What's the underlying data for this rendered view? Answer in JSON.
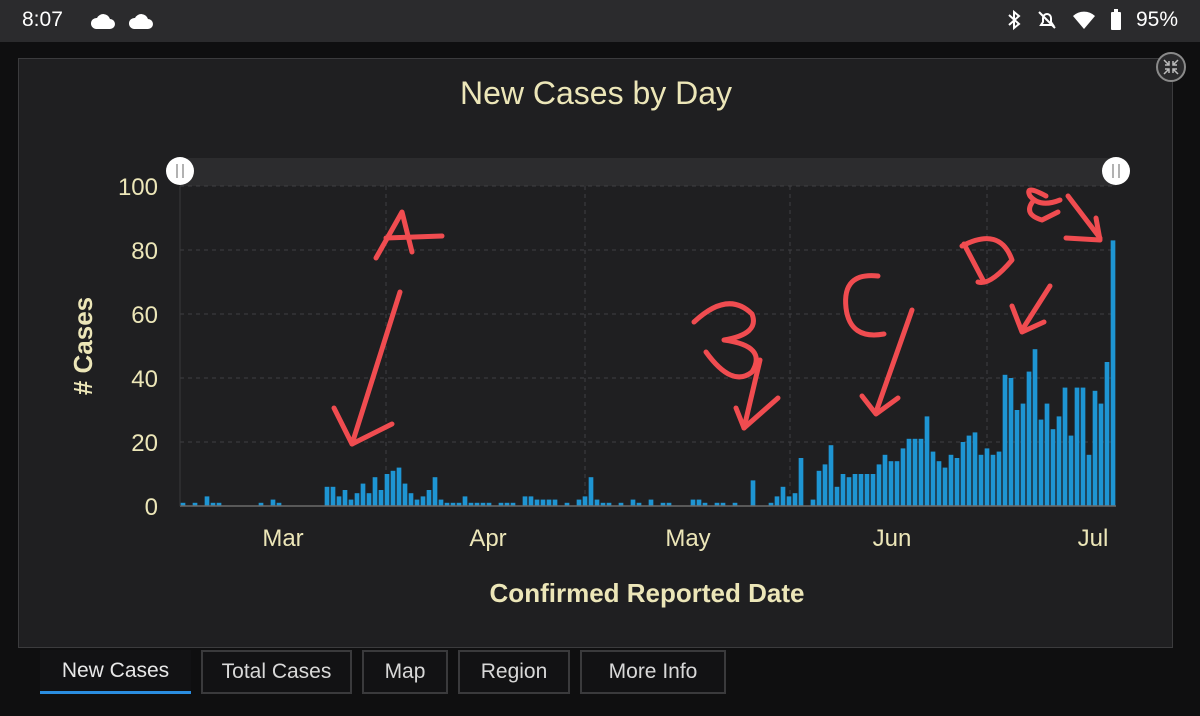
{
  "status_bar": {
    "time": "8:07",
    "battery": "95%",
    "icons": [
      "cloud-icon",
      "cloud-icon",
      "bluetooth-icon",
      "notifications-off-icon",
      "wifi-icon",
      "battery-icon"
    ]
  },
  "chart_data": {
    "type": "bar",
    "title": "New Cases by Day",
    "xlabel": "Confirmed Reported Date",
    "ylabel": "# Cases",
    "ylim": [
      0,
      100
    ],
    "yticks": [
      "0",
      "20",
      "40",
      "60",
      "80",
      "100"
    ],
    "x_tick_labels": [
      "Mar",
      "Apr",
      "May",
      "Jun",
      "Jul"
    ],
    "grid": true,
    "bar_color": "#1e95d3",
    "values": [
      1,
      0,
      1,
      0,
      3,
      1,
      1,
      0,
      0,
      0,
      0,
      0,
      0,
      1,
      0,
      2,
      1,
      0,
      0,
      0,
      0,
      0,
      0,
      0,
      6,
      6,
      3,
      5,
      2,
      4,
      7,
      4,
      9,
      5,
      10,
      11,
      12,
      7,
      4,
      2,
      3,
      5,
      9,
      2,
      1,
      1,
      1,
      3,
      1,
      1,
      1,
      1,
      0,
      1,
      1,
      1,
      0,
      3,
      3,
      2,
      2,
      2,
      2,
      0,
      1,
      0,
      2,
      3,
      9,
      2,
      1,
      1,
      0,
      1,
      0,
      2,
      1,
      0,
      2,
      0,
      1,
      1,
      0,
      0,
      0,
      2,
      2,
      1,
      0,
      1,
      1,
      0,
      1,
      0,
      0,
      8,
      0,
      0,
      1,
      3,
      6,
      3,
      4,
      15,
      0,
      2,
      11,
      13,
      19,
      6,
      10,
      9,
      10,
      10,
      10,
      10,
      13,
      16,
      14,
      14,
      18,
      21,
      21,
      21,
      28,
      17,
      14,
      12,
      16,
      15,
      20,
      22,
      23,
      16,
      18,
      16,
      17,
      41,
      40,
      30,
      32,
      42,
      49,
      27,
      32,
      24,
      28,
      37,
      22,
      37,
      37,
      16,
      36,
      32,
      45,
      83
    ],
    "annotations": [
      "A",
      "B",
      "C",
      "D",
      "E"
    ]
  },
  "range_slider": {
    "handle_left": "left-range-handle",
    "handle_right": "right-range-handle"
  },
  "tabs": [
    {
      "label": "New Cases",
      "active": true
    },
    {
      "label": "Total Cases",
      "active": false
    },
    {
      "label": "Map",
      "active": false
    },
    {
      "label": "Region",
      "active": false
    },
    {
      "label": "More Info",
      "active": false
    }
  ]
}
